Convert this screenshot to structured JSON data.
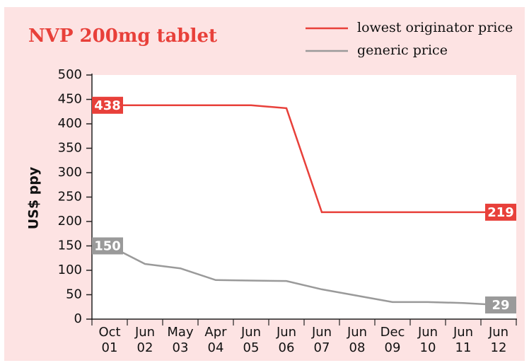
{
  "chart_data": {
    "type": "line",
    "title": "NVP 200mg tablet",
    "y_label": "US$ ppy",
    "categories": [
      "Oct\n01",
      "Jun\n02",
      "May\n03",
      "Apr\n04",
      "Jun\n05",
      "Jun\n06",
      "Jun\n07",
      "Jun\n08",
      "Dec\n09",
      "Jun\n10",
      "Jun\n11",
      "Jun\n12"
    ],
    "series": [
      {
        "name": "lowest originator price",
        "color": "#e8403a",
        "values": [
          438,
          438,
          438,
          438,
          438,
          432,
          219,
          219,
          219,
          219,
          219,
          219
        ]
      },
      {
        "name": "generic price",
        "color": "#9a9a9a",
        "values": [
          150,
          113,
          104,
          80,
          79,
          78,
          61,
          48,
          35,
          35,
          33,
          29
        ]
      }
    ],
    "ylim": [
      0,
      500
    ],
    "yticks": [
      0,
      50,
      100,
      150,
      200,
      250,
      300,
      350,
      400,
      450,
      500
    ]
  }
}
